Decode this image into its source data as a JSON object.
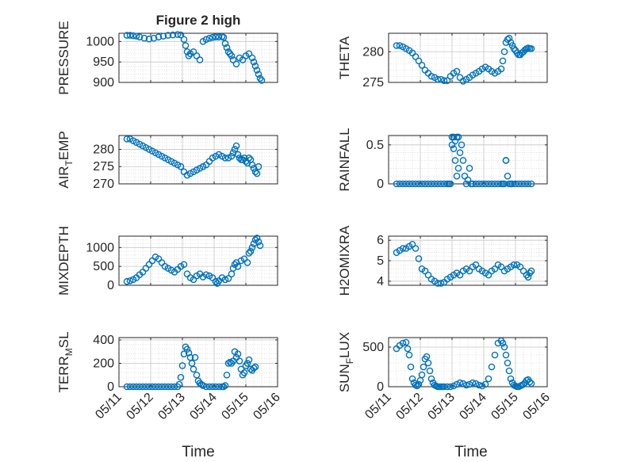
{
  "figure": {
    "title": "Figure 2 high",
    "xlabel": "Time",
    "x_tick_labels": [
      "05/11",
      "05/12",
      "05/13",
      "05/14",
      "05/15",
      "05/16"
    ]
  },
  "colors": {
    "marker": "#0072BD",
    "axis": "#262626",
    "grid": "#d0d0d0"
  },
  "chart_data": [
    {
      "type": "scatter",
      "title": "Figure 2 high",
      "xlabel": "",
      "ylabel": "PRESSURE",
      "xlim": [
        0,
        5
      ],
      "ylim": [
        900,
        1020
      ],
      "yticks": [
        900,
        950,
        1000
      ],
      "ytick_labels": [
        "900",
        "950",
        "1000"
      ],
      "series": [
        {
          "x": [
            0.25,
            0.35,
            0.45,
            0.55,
            0.65,
            0.8,
            0.95,
            1.1,
            1.25,
            1.4,
            1.55,
            1.7,
            1.85,
            1.95,
            2.05,
            2.1,
            2.15,
            2.2,
            2.25,
            2.35,
            2.45,
            2.55,
            2.65,
            2.75,
            2.85,
            2.95,
            3.05,
            3.15,
            3.25,
            3.3,
            3.35,
            3.4,
            3.45,
            3.5,
            3.55,
            3.6,
            3.7,
            3.8,
            3.9,
            4.0,
            4.1,
            4.2,
            4.25,
            4.3,
            4.35,
            4.4,
            4.45,
            4.5
          ],
          "y": [
            1015,
            1015,
            1014,
            1013,
            1011,
            1008,
            1006,
            1008,
            1011,
            1013,
            1015,
            1016,
            1017,
            1016,
            1005,
            990,
            975,
            965,
            970,
            975,
            965,
            955,
            1000,
            1005,
            1008,
            1010,
            1011,
            1011,
            1012,
            1010,
            995,
            985,
            975,
            970,
            965,
            955,
            945,
            960,
            955,
            965,
            970,
            960,
            950,
            940,
            930,
            920,
            910,
            905
          ]
        }
      ]
    },
    {
      "type": "scatter",
      "title": "",
      "xlabel": "",
      "ylabel": "THETA",
      "xlim": [
        0,
        5
      ],
      "ylim": [
        275,
        283
      ],
      "yticks": [
        275,
        280
      ],
      "ytick_labels": [
        "275",
        "280"
      ],
      "series": [
        {
          "x": [
            0.25,
            0.35,
            0.45,
            0.55,
            0.65,
            0.75,
            0.85,
            0.95,
            1.05,
            1.15,
            1.25,
            1.35,
            1.45,
            1.55,
            1.65,
            1.75,
            1.85,
            1.95,
            2.05,
            2.15,
            2.25,
            2.35,
            2.45,
            2.55,
            2.65,
            2.75,
            2.85,
            2.95,
            3.05,
            3.15,
            3.25,
            3.35,
            3.45,
            3.55,
            3.6,
            3.65,
            3.7,
            3.75,
            3.8,
            3.85,
            3.9,
            3.95,
            4.0,
            4.05,
            4.1,
            4.15,
            4.2,
            4.25,
            4.3,
            4.35,
            4.4,
            4.45,
            4.5
          ],
          "y": [
            281,
            281,
            280.8,
            280.5,
            280.2,
            279.8,
            279.2,
            278.5,
            277.8,
            277,
            276.5,
            276,
            275.8,
            275.5,
            275.5,
            275.3,
            275.3,
            276,
            276.5,
            276.8,
            275.8,
            275.2,
            275.5,
            275.8,
            276.2,
            276.5,
            276.8,
            277.2,
            277.5,
            277.2,
            276.8,
            276.5,
            276.8,
            277.2,
            278.5,
            280,
            281.5,
            282,
            282.2,
            281.5,
            281,
            280.5,
            280.2,
            279.8,
            279.5,
            279.5,
            279.8,
            280,
            280.3,
            280.5,
            280.6,
            280.5,
            280.5
          ]
        }
      ]
    },
    {
      "type": "scatter",
      "title": "",
      "xlabel": "",
      "ylabel": "AIR_TEMP",
      "xlim": [
        0,
        5
      ],
      "ylim": [
        270,
        284
      ],
      "yticks": [
        270,
        275,
        280
      ],
      "ytick_labels": [
        "270",
        "275",
        "280"
      ],
      "series": [
        {
          "x": [
            0.25,
            0.35,
            0.45,
            0.55,
            0.65,
            0.75,
            0.85,
            0.95,
            1.05,
            1.15,
            1.25,
            1.35,
            1.45,
            1.55,
            1.65,
            1.75,
            1.85,
            1.95,
            2.05,
            2.15,
            2.25,
            2.35,
            2.45,
            2.55,
            2.65,
            2.75,
            2.85,
            2.95,
            3.05,
            3.15,
            3.25,
            3.35,
            3.45,
            3.55,
            3.6,
            3.65,
            3.7,
            3.75,
            3.8,
            3.85,
            3.9,
            3.95,
            4.0,
            4.05,
            4.1,
            4.15,
            4.2,
            4.25,
            4.3,
            4.35,
            4.4
          ],
          "y": [
            283,
            283,
            282.5,
            282,
            281.5,
            281,
            280.5,
            280,
            279.5,
            279,
            278.5,
            278,
            277.5,
            277,
            276.5,
            276,
            275.5,
            275,
            273.5,
            272.5,
            273,
            273.5,
            274,
            274.5,
            275,
            275.5,
            276.5,
            277.5,
            278,
            278.5,
            278,
            277.5,
            277.5,
            278,
            279,
            280,
            281,
            278.5,
            277.5,
            277,
            277,
            277.5,
            276.5,
            276,
            277.5,
            277,
            275.5,
            274.5,
            273.5,
            273,
            275
          ]
        }
      ]
    },
    {
      "type": "scatter",
      "title": "",
      "xlabel": "",
      "ylabel": "RAINFALL",
      "xlim": [
        0,
        5
      ],
      "ylim": [
        0,
        0.62
      ],
      "yticks": [
        0,
        0.5
      ],
      "ytick_labels": [
        "0",
        "0.5"
      ],
      "series": [
        {
          "x": [
            0.25,
            0.35,
            0.45,
            0.55,
            0.65,
            0.75,
            0.85,
            0.95,
            1.05,
            1.15,
            1.25,
            1.35,
            1.45,
            1.55,
            1.65,
            1.75,
            1.85,
            1.9,
            1.95,
            2.0,
            2.0,
            2.05,
            2.05,
            2.1,
            2.1,
            2.15,
            2.15,
            2.2,
            2.2,
            2.25,
            2.3,
            2.35,
            2.4,
            2.45,
            2.5,
            2.55,
            2.6,
            2.65,
            2.75,
            2.85,
            2.95,
            3.05,
            3.15,
            3.25,
            3.35,
            3.45,
            3.55,
            3.6,
            3.65,
            3.7,
            3.7,
            3.75,
            3.8,
            3.85,
            3.9,
            4.0,
            4.1,
            4.2,
            4.3,
            4.4,
            4.5
          ],
          "y": [
            0,
            0,
            0,
            0,
            0,
            0,
            0,
            0,
            0,
            0,
            0,
            0,
            0,
            0,
            0,
            0,
            0,
            0,
            0,
            0.5,
            0.6,
            0.45,
            0.6,
            0.3,
            0.55,
            0.1,
            0.6,
            0.2,
            0.6,
            0.4,
            0.5,
            0.3,
            0.1,
            0,
            0.05,
            0.2,
            0,
            0,
            0,
            0,
            0,
            0,
            0,
            0,
            0,
            0,
            0,
            0,
            0,
            0.3,
            0.3,
            0.1,
            0,
            0,
            0,
            0,
            0,
            0,
            0,
            0,
            0
          ]
        }
      ]
    },
    {
      "type": "scatter",
      "title": "",
      "xlabel": "",
      "ylabel": "MIXDEPTH",
      "xlim": [
        0,
        5
      ],
      "ylim": [
        0,
        1300
      ],
      "yticks": [
        0,
        500,
        1000
      ],
      "ytick_labels": [
        "0",
        "500",
        "1000"
      ],
      "series": [
        {
          "x": [
            0.25,
            0.35,
            0.45,
            0.55,
            0.65,
            0.75,
            0.85,
            0.95,
            1.05,
            1.15,
            1.25,
            1.35,
            1.45,
            1.55,
            1.65,
            1.75,
            1.85,
            1.95,
            2.05,
            2.15,
            2.25,
            2.35,
            2.45,
            2.55,
            2.65,
            2.75,
            2.85,
            2.95,
            3.05,
            3.1,
            3.15,
            3.25,
            3.35,
            3.45,
            3.55,
            3.6,
            3.65,
            3.7,
            3.75,
            3.85,
            3.95,
            4.05,
            4.1,
            4.15,
            4.2,
            4.25,
            4.3,
            4.35,
            4.4,
            4.45
          ],
          "y": [
            100,
            120,
            150,
            200,
            280,
            350,
            450,
            550,
            650,
            750,
            700,
            600,
            500,
            450,
            400,
            350,
            420,
            500,
            550,
            300,
            200,
            150,
            250,
            300,
            220,
            280,
            250,
            200,
            100,
            50,
            120,
            200,
            150,
            180,
            300,
            450,
            550,
            600,
            500,
            650,
            700,
            600,
            850,
            900,
            1000,
            1100,
            1200,
            1250,
            1150,
            1050
          ]
        }
      ]
    },
    {
      "type": "scatter",
      "title": "",
      "xlabel": "",
      "ylabel": "H2OMIXRA",
      "xlim": [
        0,
        5
      ],
      "ylim": [
        3.8,
        6.2
      ],
      "yticks": [
        4,
        5,
        6
      ],
      "ytick_labels": [
        "4",
        "5",
        "6"
      ],
      "series": [
        {
          "x": [
            0.25,
            0.35,
            0.45,
            0.55,
            0.65,
            0.75,
            0.85,
            0.95,
            1.05,
            1.15,
            1.25,
            1.35,
            1.45,
            1.55,
            1.65,
            1.75,
            1.85,
            1.95,
            2.05,
            2.15,
            2.25,
            2.35,
            2.45,
            2.55,
            2.65,
            2.75,
            2.85,
            2.95,
            3.05,
            3.15,
            3.25,
            3.35,
            3.45,
            3.55,
            3.65,
            3.75,
            3.85,
            3.95,
            4.05,
            4.15,
            4.25,
            4.35,
            4.4,
            4.45,
            4.5
          ],
          "y": [
            5.4,
            5.5,
            5.6,
            5.6,
            5.7,
            5.8,
            5.6,
            5.1,
            4.6,
            4.5,
            4.3,
            4.1,
            4.0,
            3.9,
            3.9,
            3.95,
            4.1,
            4.2,
            4.3,
            4.4,
            4.3,
            4.5,
            4.6,
            4.5,
            4.7,
            4.8,
            4.6,
            4.5,
            4.4,
            4.3,
            4.5,
            4.6,
            4.8,
            4.7,
            4.5,
            4.6,
            4.7,
            4.8,
            4.8,
            4.7,
            4.5,
            4.3,
            4.2,
            4.4,
            4.5
          ]
        }
      ]
    },
    {
      "type": "scatter",
      "title": "",
      "xlabel": "Time",
      "ylabel": "TERR_MSL",
      "xlim": [
        0,
        5
      ],
      "ylim": [
        0,
        420
      ],
      "yticks": [
        0,
        200,
        400
      ],
      "ytick_labels": [
        "0",
        "200",
        "400"
      ],
      "xticks": [
        0,
        1,
        2,
        3,
        4,
        5
      ],
      "xtick_labels": [
        "05/11",
        "05/12",
        "05/13",
        "05/14",
        "05/15",
        "05/16"
      ],
      "series": [
        {
          "x": [
            0.25,
            0.35,
            0.45,
            0.55,
            0.65,
            0.75,
            0.85,
            0.95,
            1.05,
            1.15,
            1.25,
            1.35,
            1.45,
            1.55,
            1.65,
            1.75,
            1.85,
            1.9,
            1.95,
            2.0,
            2.05,
            2.1,
            2.15,
            2.2,
            2.25,
            2.3,
            2.35,
            2.4,
            2.45,
            2.5,
            2.55,
            2.6,
            2.65,
            2.75,
            2.85,
            2.95,
            3.05,
            3.15,
            3.25,
            3.3,
            3.35,
            3.4,
            3.45,
            3.5,
            3.55,
            3.6,
            3.65,
            3.7,
            3.75,
            3.8,
            3.85,
            3.9,
            3.95,
            4.0,
            4.05,
            4.1,
            4.15,
            4.2,
            4.25,
            4.3
          ],
          "y": [
            0,
            0,
            0,
            0,
            0,
            0,
            0,
            0,
            0,
            0,
            0,
            0,
            0,
            0,
            0,
            0,
            0,
            20,
            80,
            180,
            280,
            340,
            320,
            290,
            250,
            200,
            150,
            250,
            100,
            50,
            30,
            20,
            10,
            0,
            0,
            0,
            0,
            0,
            0,
            0,
            10,
            100,
            200,
            210,
            200,
            220,
            300,
            250,
            280,
            220,
            150,
            100,
            120,
            180,
            200,
            230,
            150,
            140,
            160,
            170
          ]
        }
      ]
    },
    {
      "type": "scatter",
      "title": "",
      "xlabel": "Time",
      "ylabel": "SUN_FLUX",
      "xlim": [
        0,
        5
      ],
      "ylim": [
        0,
        620
      ],
      "yticks": [
        0,
        500
      ],
      "ytick_labels": [
        "0",
        "500"
      ],
      "xticks": [
        0,
        1,
        2,
        3,
        4,
        5
      ],
      "xtick_labels": [
        "05/11",
        "05/12",
        "05/13",
        "05/14",
        "05/15",
        "05/16"
      ],
      "series": [
        {
          "x": [
            0.25,
            0.35,
            0.45,
            0.55,
            0.6,
            0.65,
            0.7,
            0.75,
            0.8,
            0.85,
            0.9,
            0.95,
            1.0,
            1.05,
            1.1,
            1.15,
            1.2,
            1.25,
            1.3,
            1.35,
            1.4,
            1.45,
            1.5,
            1.55,
            1.6,
            1.65,
            1.7,
            1.75,
            1.85,
            1.95,
            2.05,
            2.15,
            2.25,
            2.35,
            2.45,
            2.55,
            2.65,
            2.75,
            2.85,
            2.95,
            3.05,
            3.15,
            3.25,
            3.35,
            3.45,
            3.55,
            3.6,
            3.65,
            3.7,
            3.75,
            3.8,
            3.85,
            3.9,
            3.95,
            4.0,
            4.05,
            4.1,
            4.15,
            4.2,
            4.25,
            4.3,
            4.35,
            4.4,
            4.45,
            4.5
          ],
          "y": [
            480,
            520,
            550,
            560,
            480,
            400,
            250,
            100,
            50,
            20,
            10,
            30,
            80,
            150,
            250,
            350,
            380,
            300,
            200,
            100,
            50,
            20,
            10,
            0,
            0,
            0,
            0,
            0,
            0,
            0,
            10,
            30,
            50,
            40,
            20,
            30,
            50,
            40,
            20,
            10,
            30,
            100,
            250,
            400,
            550,
            580,
            550,
            500,
            400,
            300,
            200,
            100,
            50,
            20,
            10,
            0,
            0,
            10,
            20,
            30,
            50,
            80,
            90,
            60,
            40
          ]
        }
      ]
    }
  ]
}
